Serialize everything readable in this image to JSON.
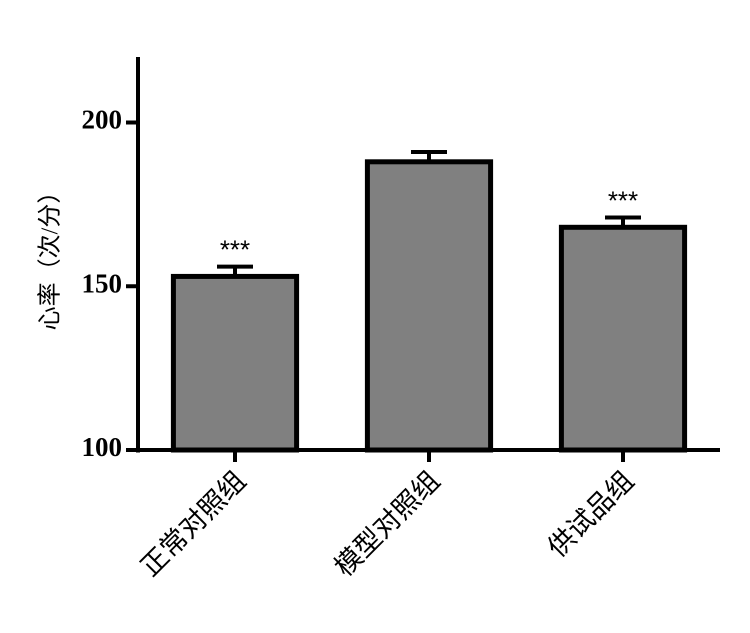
{
  "chart_data": {
    "type": "bar",
    "y_label": "心率（次/分）",
    "categories": [
      "正常对照组",
      "模型对照组",
      "供试品组"
    ],
    "values": [
      153,
      188,
      168
    ],
    "errors": [
      3,
      3,
      3
    ],
    "annotations": [
      "***",
      null,
      "***"
    ],
    "color": "#808080",
    "ylim": [
      100,
      220
    ],
    "yticks": [
      100,
      150,
      200
    ]
  }
}
